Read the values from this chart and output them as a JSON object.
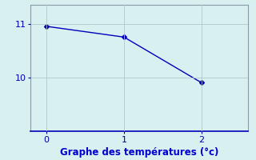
{
  "x": [
    0,
    1,
    2
  ],
  "y": [
    10.95,
    10.75,
    9.9
  ],
  "line_color": "#0000bb",
  "marker": "D",
  "marker_size": 3,
  "bg_color": "#d8f0f0",
  "grid_color": "#b0c8c8",
  "spine_color": "#8899aa",
  "bottom_spine_color": "#0000bb",
  "xlabel": "Graphe des températures (°c)",
  "xlabel_color": "#0000cc",
  "tick_color": "#0000aa",
  "xlim": [
    -0.2,
    2.6
  ],
  "ylim": [
    9.0,
    11.35
  ],
  "yticks": [
    10,
    11
  ],
  "xticks": [
    0,
    1,
    2
  ],
  "tick_fontsize": 8,
  "xlabel_fontsize": 8.5
}
